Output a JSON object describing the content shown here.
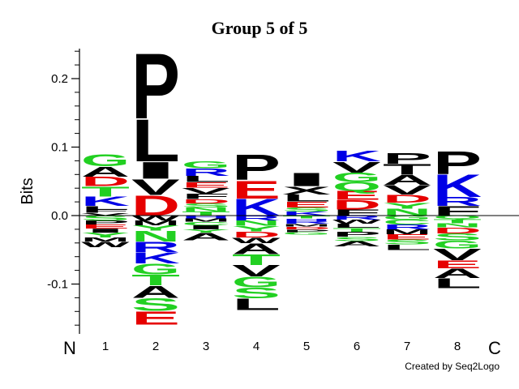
{
  "chart_data": {
    "type": "sequence-logo",
    "title": "Group 5 of 5",
    "ylabel": "Bits",
    "ylim": [
      -0.17,
      0.25
    ],
    "yticks": [
      {
        "value": 0.2,
        "label": "0.2"
      },
      {
        "value": 0.1,
        "label": "0.1"
      },
      {
        "value": 0.0,
        "label": "0.0"
      },
      {
        "value": -0.1,
        "label": "-0.1"
      }
    ],
    "n_label": "N",
    "c_label": "C",
    "credit": "Created by Seq2Logo",
    "colors": {
      "green": "#22d022",
      "red": "#e60000",
      "blue": "#0000e6",
      "black": "#000000"
    },
    "positions": [
      {
        "label": "1",
        "up": [
          {
            "l": "V",
            "c": "black",
            "h": 0.004
          },
          {
            "l": "F",
            "c": "black",
            "h": 0.005
          },
          {
            "l": "L",
            "c": "black",
            "h": 0.005
          },
          {
            "l": "K",
            "c": "blue",
            "h": 0.014
          },
          {
            "l": "T",
            "c": "green",
            "h": 0.015
          },
          {
            "l": "D",
            "c": "red",
            "h": 0.014
          },
          {
            "l": "A",
            "c": "black",
            "h": 0.015
          },
          {
            "l": "G",
            "c": "green",
            "h": 0.018
          }
        ],
        "down": [
          {
            "l": "S",
            "c": "green",
            "h": 0.007
          },
          {
            "l": "P",
            "c": "black",
            "h": 0.006
          },
          {
            "l": "E",
            "c": "red",
            "h": 0.006
          },
          {
            "l": "I",
            "c": "black",
            "h": 0.006
          },
          {
            "l": "Y",
            "c": "green",
            "h": 0.007
          },
          {
            "l": "M",
            "c": "black",
            "h": 0.006
          },
          {
            "l": "W",
            "c": "black",
            "h": 0.008
          }
        ]
      },
      {
        "label": "2",
        "up": [
          {
            "l": "D",
            "c": "red",
            "h": 0.03
          },
          {
            "l": "V",
            "c": "black",
            "h": 0.024
          },
          {
            "l": "I",
            "c": "black",
            "h": 0.025
          },
          {
            "l": "L",
            "c": "black",
            "h": 0.063
          },
          {
            "l": "P",
            "c": "black",
            "h": 0.098
          }
        ],
        "down": [
          {
            "l": "W",
            "c": "black",
            "h": 0.007
          },
          {
            "l": "M",
            "c": "black",
            "h": 0.007
          },
          {
            "l": "Y",
            "c": "green",
            "h": 0.008
          },
          {
            "l": "N",
            "c": "green",
            "h": 0.016
          },
          {
            "l": "R",
            "c": "blue",
            "h": 0.016
          },
          {
            "l": "K",
            "c": "blue",
            "h": 0.016
          },
          {
            "l": "G",
            "c": "green",
            "h": 0.016
          },
          {
            "l": "T",
            "c": "green",
            "h": 0.016
          },
          {
            "l": "A",
            "c": "black",
            "h": 0.018
          },
          {
            "l": "S",
            "c": "green",
            "h": 0.019
          },
          {
            "l": "E",
            "c": "red",
            "h": 0.02
          }
        ]
      },
      {
        "label": "3",
        "up": [
          {
            "l": "T",
            "c": "green",
            "h": 0.006
          },
          {
            "l": "N",
            "c": "green",
            "h": 0.006
          },
          {
            "l": "S",
            "c": "green",
            "h": 0.006
          },
          {
            "l": "D",
            "c": "red",
            "h": 0.006
          },
          {
            "l": "F",
            "c": "black",
            "h": 0.008
          },
          {
            "l": "V",
            "c": "black",
            "h": 0.009
          },
          {
            "l": "E",
            "c": "red",
            "h": 0.008
          },
          {
            "l": "L",
            "c": "black",
            "h": 0.009
          },
          {
            "l": "R",
            "c": "blue",
            "h": 0.011
          },
          {
            "l": "G",
            "c": "green",
            "h": 0.01
          }
        ],
        "down": [
          {
            "l": "H",
            "c": "blue",
            "h": 0.004
          },
          {
            "l": "M",
            "c": "black",
            "h": 0.005
          },
          {
            "l": "C",
            "c": "green",
            "h": 0.005
          },
          {
            "l": "I",
            "c": "black",
            "h": 0.006
          },
          {
            "l": "Y",
            "c": "green",
            "h": 0.005
          },
          {
            "l": "A",
            "c": "black",
            "h": 0.011
          }
        ]
      },
      {
        "label": "4",
        "up": [
          {
            "l": "K",
            "c": "blue",
            "h": 0.025
          },
          {
            "l": "E",
            "c": "red",
            "h": 0.027
          },
          {
            "l": "P",
            "c": "black",
            "h": 0.038
          }
        ],
        "down": [
          {
            "l": "R",
            "c": "blue",
            "h": 0.007
          },
          {
            "l": "N",
            "c": "green",
            "h": 0.008
          },
          {
            "l": "Y",
            "c": "green",
            "h": 0.008
          },
          {
            "l": "D",
            "c": "red",
            "h": 0.009
          },
          {
            "l": "W",
            "c": "black",
            "h": 0.008
          },
          {
            "l": "A",
            "c": "black",
            "h": 0.016
          },
          {
            "l": "T",
            "c": "green",
            "h": 0.016
          },
          {
            "l": "V",
            "c": "black",
            "h": 0.017
          },
          {
            "l": "G",
            "c": "green",
            "h": 0.016
          },
          {
            "l": "S",
            "c": "green",
            "h": 0.016
          },
          {
            "l": "L",
            "c": "black",
            "h": 0.017
          }
        ]
      },
      {
        "label": "5",
        "up": [
          {
            "l": "K",
            "c": "blue",
            "h": 0.006
          },
          {
            "l": "S",
            "c": "green",
            "h": 0.006
          },
          {
            "l": "E",
            "c": "red",
            "h": 0.009
          },
          {
            "l": "L",
            "c": "black",
            "h": 0.01
          },
          {
            "l": "X",
            "c": "black",
            "h": 0.012
          },
          {
            "l": "I",
            "c": "black",
            "h": 0.02
          }
        ],
        "down": [
          {
            "l": "T",
            "c": "green",
            "h": 0.004
          },
          {
            "l": "H",
            "c": "blue",
            "h": 0.004
          },
          {
            "l": "R",
            "c": "blue",
            "h": 0.004
          },
          {
            "l": "M",
            "c": "black",
            "h": 0.004
          },
          {
            "l": "D",
            "c": "red",
            "h": 0.004
          },
          {
            "l": "P",
            "c": "black",
            "h": 0.004
          },
          {
            "l": "G",
            "c": "green",
            "h": 0.004
          }
        ]
      },
      {
        "label": "6",
        "up": [
          {
            "l": "F",
            "c": "black",
            "h": 0.009
          },
          {
            "l": "D",
            "c": "red",
            "h": 0.014
          },
          {
            "l": "E",
            "c": "red",
            "h": 0.013
          },
          {
            "l": "Q",
            "c": "green",
            "h": 0.013
          },
          {
            "l": "G",
            "c": "green",
            "h": 0.014
          },
          {
            "l": "V",
            "c": "black",
            "h": 0.016
          },
          {
            "l": "K",
            "c": "blue",
            "h": 0.016
          }
        ],
        "down": [
          {
            "l": "R",
            "c": "blue",
            "h": 0.006
          },
          {
            "l": "W",
            "c": "black",
            "h": 0.006
          },
          {
            "l": "L",
            "c": "black",
            "h": 0.006
          },
          {
            "l": "T",
            "c": "green",
            "h": 0.006
          },
          {
            "l": "P",
            "c": "black",
            "h": 0.007
          },
          {
            "l": "S",
            "c": "green",
            "h": 0.006
          },
          {
            "l": "A",
            "c": "black",
            "h": 0.008
          }
        ]
      },
      {
        "label": "7",
        "up": [
          {
            "l": "N",
            "c": "green",
            "h": 0.01
          },
          {
            "l": "Y",
            "c": "green",
            "h": 0.009
          },
          {
            "l": "D",
            "c": "red",
            "h": 0.012
          },
          {
            "l": "V",
            "c": "black",
            "h": 0.014
          },
          {
            "l": "A",
            "c": "black",
            "h": 0.015
          },
          {
            "l": "T",
            "c": "black",
            "h": 0.016
          },
          {
            "l": "P",
            "c": "black",
            "h": 0.016
          }
        ],
        "down": [
          {
            "l": "G",
            "c": "green",
            "h": 0.006
          },
          {
            "l": "C",
            "c": "green",
            "h": 0.007
          },
          {
            "l": "R",
            "c": "blue",
            "h": 0.007
          },
          {
            "l": "M",
            "c": "black",
            "h": 0.007
          },
          {
            "l": "E",
            "c": "red",
            "h": 0.008
          },
          {
            "l": "S",
            "c": "green",
            "h": 0.007
          },
          {
            "l": "L",
            "c": "black",
            "h": 0.008
          }
        ]
      },
      {
        "label": "8",
        "up": [
          {
            "l": "F",
            "c": "black",
            "h": 0.014
          },
          {
            "l": "R",
            "c": "blue",
            "h": 0.013
          },
          {
            "l": "K",
            "c": "blue",
            "h": 0.034
          },
          {
            "l": "P",
            "c": "black",
            "h": 0.034
          }
        ],
        "down": [
          {
            "l": "Q",
            "c": "green",
            "h": 0.005
          },
          {
            "l": "T",
            "c": "green",
            "h": 0.006
          },
          {
            "l": "N",
            "c": "green",
            "h": 0.006
          },
          {
            "l": "D",
            "c": "red",
            "h": 0.009
          },
          {
            "l": "S",
            "c": "green",
            "h": 0.01
          },
          {
            "l": "G",
            "c": "green",
            "h": 0.012
          },
          {
            "l": "V",
            "c": "black",
            "h": 0.017
          },
          {
            "l": "E",
            "c": "red",
            "h": 0.012
          },
          {
            "l": "A",
            "c": "black",
            "h": 0.014
          },
          {
            "l": "L",
            "c": "black",
            "h": 0.015
          }
        ]
      }
    ]
  }
}
